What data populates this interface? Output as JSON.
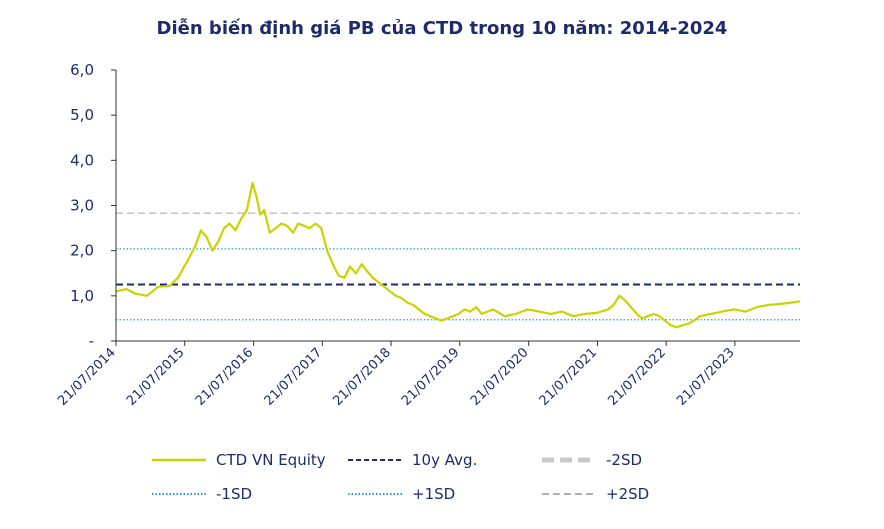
{
  "chart_data": {
    "type": "line",
    "title": "Diễn biến định giá PB của CTD trong 10 năm: 2014-2024",
    "xlabel": "",
    "ylabel": "",
    "ylim": [
      0,
      6
    ],
    "y_ticks": [
      "-",
      "1,0",
      "2,0",
      "3,0",
      "4,0",
      "5,0",
      "6,0"
    ],
    "x_ticks": [
      "21/07/2014",
      "21/07/2015",
      "21/07/2016",
      "21/07/2017",
      "21/07/2018",
      "21/07/2019",
      "21/07/2020",
      "21/07/2021",
      "21/07/2022",
      "21/07/2023"
    ],
    "xlim": [
      "2014-07-21",
      "2024-07-01"
    ],
    "grid": false,
    "legend_position": "bottom",
    "series": [
      {
        "name": "CTD VN Equity",
        "color": "#c8d400",
        "style": "solid",
        "x": [
          "2014-07-21",
          "2014-09-15",
          "2014-11-01",
          "2015-01-01",
          "2015-03-01",
          "2015-05-01",
          "2015-06-15",
          "2015-08-01",
          "2015-09-15",
          "2015-10-15",
          "2015-11-15",
          "2015-12-15",
          "2016-01-15",
          "2016-02-15",
          "2016-03-15",
          "2016-04-15",
          "2016-05-15",
          "2016-06-15",
          "2016-07-15",
          "2016-08-05",
          "2016-08-25",
          "2016-09-15",
          "2016-10-15",
          "2016-11-15",
          "2016-12-15",
          "2017-01-15",
          "2017-02-15",
          "2017-03-15",
          "2017-04-15",
          "2017-05-15",
          "2017-06-15",
          "2017-07-15",
          "2017-08-15",
          "2017-09-15",
          "2017-10-15",
          "2017-11-15",
          "2017-12-15",
          "2018-01-15",
          "2018-02-15",
          "2018-03-15",
          "2018-04-15",
          "2018-05-15",
          "2018-06-15",
          "2018-07-15",
          "2018-08-15",
          "2018-09-15",
          "2018-10-15",
          "2018-11-15",
          "2018-12-15",
          "2019-01-15",
          "2019-02-15",
          "2019-03-15",
          "2019-04-15",
          "2019-05-15",
          "2019-06-15",
          "2019-07-15",
          "2019-08-15",
          "2019-09-15",
          "2019-10-15",
          "2019-11-15",
          "2019-12-15",
          "2020-01-15",
          "2020-03-15",
          "2020-05-15",
          "2020-07-15",
          "2020-09-15",
          "2020-11-15",
          "2021-01-15",
          "2021-03-15",
          "2021-05-15",
          "2021-07-15",
          "2021-09-15",
          "2021-10-15",
          "2021-11-15",
          "2021-12-15",
          "2022-01-15",
          "2022-02-15",
          "2022-03-15",
          "2022-04-15",
          "2022-05-15",
          "2022-06-15",
          "2022-07-15",
          "2022-08-15",
          "2022-09-15",
          "2022-10-15",
          "2022-11-15",
          "2022-12-15",
          "2023-01-15",
          "2023-03-15",
          "2023-05-15",
          "2023-07-15",
          "2023-09-15",
          "2023-11-15",
          "2024-01-15",
          "2024-03-15",
          "2024-05-15",
          "2024-07-01"
        ],
        "values": [
          1.1,
          1.15,
          1.05,
          1.0,
          1.2,
          1.22,
          1.4,
          1.75,
          2.1,
          2.45,
          2.3,
          2.0,
          2.2,
          2.5,
          2.6,
          2.45,
          2.7,
          2.9,
          3.5,
          3.2,
          2.8,
          2.9,
          2.4,
          2.5,
          2.6,
          2.55,
          2.4,
          2.6,
          2.55,
          2.5,
          2.6,
          2.5,
          2.0,
          1.7,
          1.45,
          1.4,
          1.65,
          1.5,
          1.7,
          1.55,
          1.4,
          1.3,
          1.2,
          1.1,
          1.0,
          0.95,
          0.85,
          0.8,
          0.7,
          0.6,
          0.55,
          0.5,
          0.45,
          0.5,
          0.55,
          0.6,
          0.7,
          0.65,
          0.75,
          0.6,
          0.65,
          0.7,
          0.55,
          0.6,
          0.7,
          0.65,
          0.6,
          0.65,
          0.55,
          0.6,
          0.62,
          0.7,
          0.8,
          1.0,
          0.9,
          0.75,
          0.6,
          0.5,
          0.55,
          0.6,
          0.55,
          0.45,
          0.35,
          0.3,
          0.35,
          0.38,
          0.45,
          0.55,
          0.6,
          0.65,
          0.7,
          0.65,
          0.75,
          0.8,
          0.82,
          0.85,
          0.88
        ]
      },
      {
        "name": "10y Avg.",
        "color": "#1f2a6b",
        "style": "dashed",
        "value": 1.25
      },
      {
        "name": "-2SD",
        "color": "#c8c8c8",
        "style": "dashed-thick",
        "value": null
      },
      {
        "name": "-1SD",
        "color": "#2b9bd6",
        "style": "dotted",
        "value": 0.47
      },
      {
        "name": "+1SD",
        "color": "#2b9bd6",
        "style": "dotted",
        "value": 2.04
      },
      {
        "name": "+2SD",
        "color": "#b0b0b0",
        "style": "dashed",
        "value": 2.83
      }
    ]
  }
}
